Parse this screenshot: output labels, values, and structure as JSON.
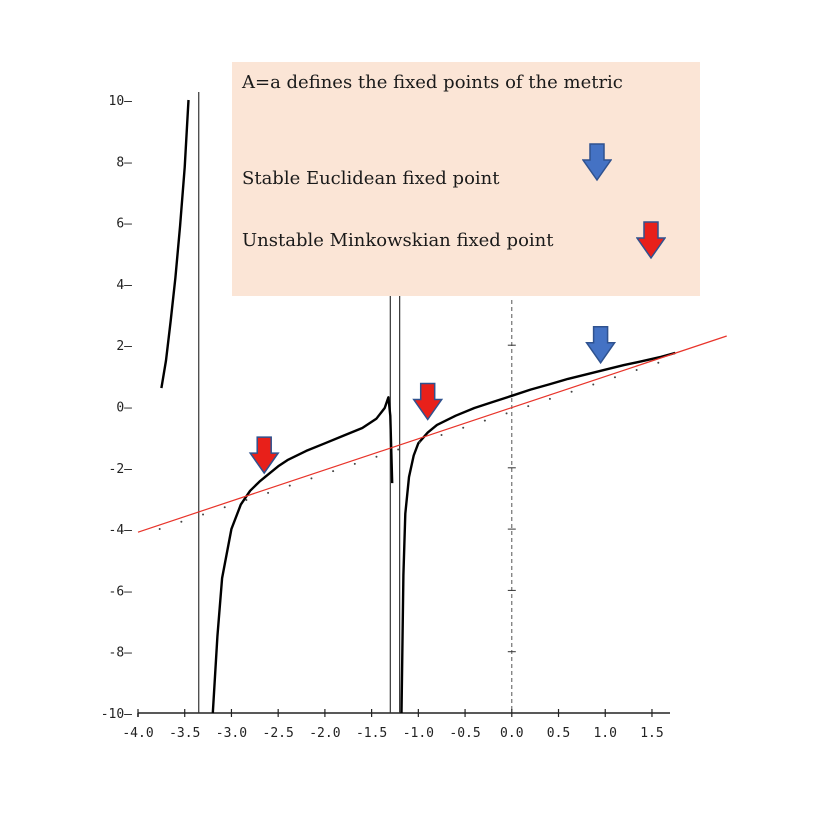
{
  "chart_data": {
    "type": "line",
    "title": "",
    "xlabel": "",
    "ylabel": "",
    "xlim": [
      -4.0,
      1.8
    ],
    "ylim": [
      -10,
      10
    ],
    "x_ticks": [
      "-4.0",
      "-3.5",
      "-3.0",
      "-2.5",
      "-2.0",
      "-1.5",
      "-1.0",
      "-0.5",
      "0.0",
      "0.5",
      "1.0",
      "1.5"
    ],
    "y_ticks": [
      "10",
      "8",
      "6",
      "4",
      "2",
      "0",
      "-2",
      "-4",
      "-6",
      "-8",
      "-10"
    ],
    "vertical_asymptotes": [
      -3.35,
      -1.3,
      -1.2
    ],
    "series": [
      {
        "kind": "curve",
        "color": "#000000",
        "branches": [
          [
            [
              -3.75,
              0.6
            ],
            [
              -3.7,
              1.5
            ],
            [
              -3.65,
              2.8
            ],
            [
              -3.6,
              4.2
            ],
            [
              -3.55,
              5.9
            ],
            [
              -3.5,
              7.8
            ],
            [
              -3.46,
              10
            ]
          ],
          [
            [
              -3.2,
              -10
            ],
            [
              -3.15,
              -7.5
            ],
            [
              -3.1,
              -5.6
            ],
            [
              -3.0,
              -4.0
            ],
            [
              -2.9,
              -3.2
            ],
            [
              -2.8,
              -2.75
            ],
            [
              -2.7,
              -2.45
            ],
            [
              -2.6,
              -2.2
            ],
            [
              -2.5,
              -1.95
            ],
            [
              -2.4,
              -1.75
            ],
            [
              -2.2,
              -1.45
            ],
            [
              -2.0,
              -1.2
            ],
            [
              -1.8,
              -0.95
            ],
            [
              -1.6,
              -0.7
            ],
            [
              -1.45,
              -0.4
            ],
            [
              -1.36,
              -0.05
            ],
            [
              -1.32,
              0.3
            ],
            [
              -1.3,
              -0.3
            ],
            [
              -1.28,
              -2.5
            ]
          ],
          [
            [
              -1.18,
              -10
            ],
            [
              -1.16,
              -5.5
            ],
            [
              -1.14,
              -3.5
            ],
            [
              -1.1,
              -2.3
            ],
            [
              -1.05,
              -1.6
            ],
            [
              -1.0,
              -1.2
            ],
            [
              -0.9,
              -0.85
            ],
            [
              -0.8,
              -0.6
            ],
            [
              -0.6,
              -0.3
            ],
            [
              -0.4,
              -0.05
            ],
            [
              -0.2,
              0.15
            ],
            [
              0.0,
              0.35
            ],
            [
              0.2,
              0.55
            ],
            [
              0.4,
              0.72
            ],
            [
              0.6,
              0.9
            ],
            [
              0.8,
              1.05
            ],
            [
              1.0,
              1.2
            ],
            [
              1.2,
              1.35
            ],
            [
              1.4,
              1.48
            ],
            [
              1.6,
              1.62
            ],
            [
              1.75,
              1.75
            ]
          ]
        ]
      },
      {
        "kind": "line",
        "name": "",
        "color": "#e8342a",
        "from": [
          -4.0,
          -4.1
        ],
        "to": [
          2.3,
          2.3
        ]
      }
    ],
    "markers": [
      {
        "type": "unstable-minkowskian",
        "color": "#e8201a",
        "x": -2.65,
        "y": -2.5
      },
      {
        "type": "unstable-minkowskian",
        "color": "#e8201a",
        "x": -0.9,
        "y": -0.75
      },
      {
        "type": "stable-euclidean",
        "color": "#4472c4",
        "x": 0.95,
        "y": 1.1
      }
    ]
  },
  "legend": {
    "title": "A=a defines the fixed points of the metric",
    "stable_label": "Stable Euclidean fixed point",
    "stable_icon": "blue-down-arrow",
    "unstable_label": "Unstable Minkowskian fixed point",
    "unstable_icon": "red-down-arrow",
    "background": "#fbe5d6"
  }
}
